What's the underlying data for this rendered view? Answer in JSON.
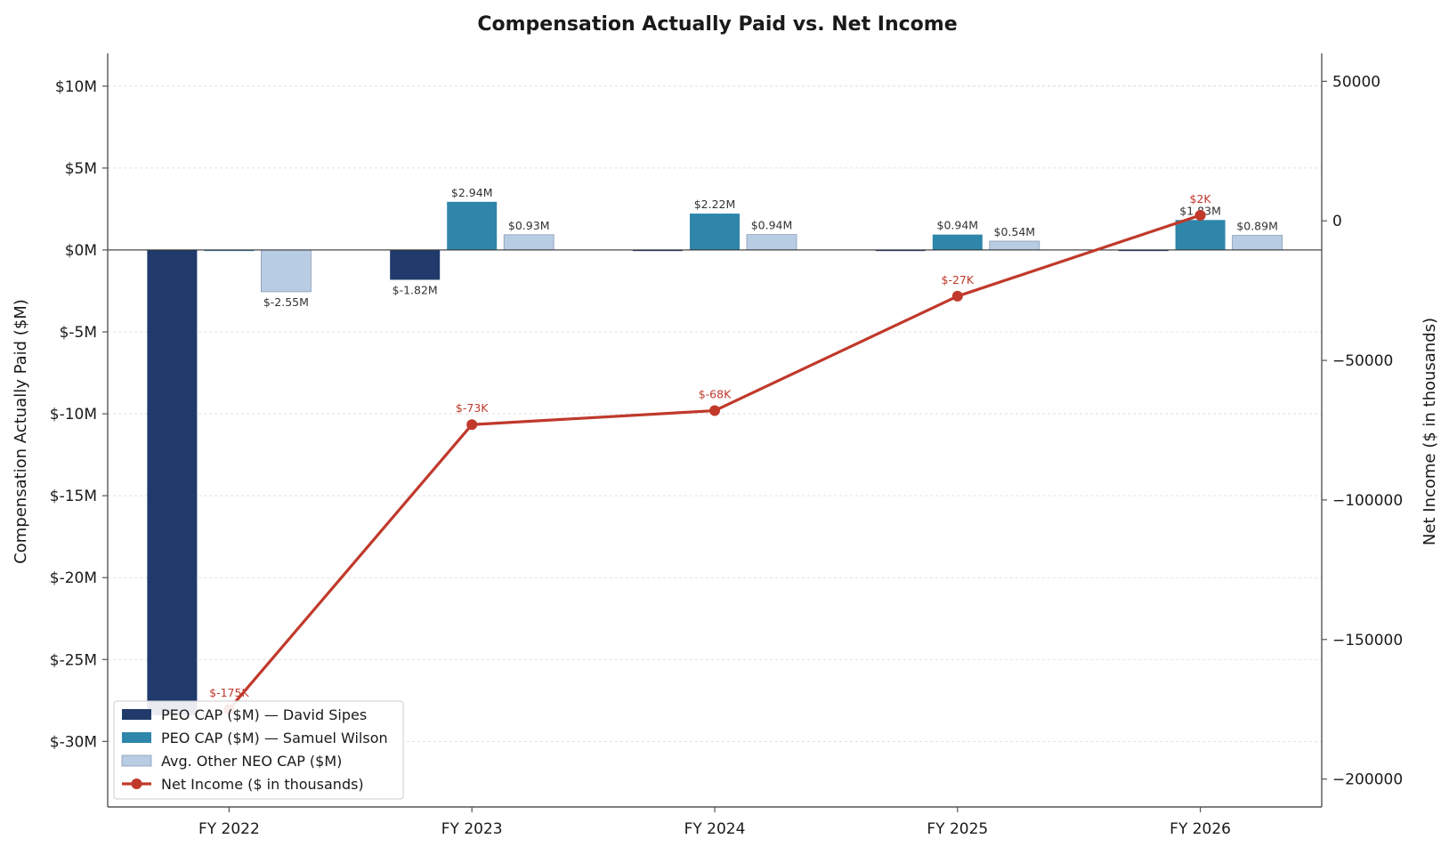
{
  "chart_data": {
    "type": "bar",
    "title": "Compensation Actually Paid vs. Net Income",
    "categories": [
      "FY 2022",
      "FY 2023",
      "FY 2024",
      "FY 2025",
      "FY 2026"
    ],
    "ylabel": "Compensation Actually Paid ($M)",
    "y2label": "Net Income ($ in thousands)",
    "ylim": [
      -34,
      12
    ],
    "yticks": [
      10,
      5,
      0,
      -5,
      -10,
      -15,
      -20,
      -25,
      -30
    ],
    "ytick_labels": [
      "$10M",
      "$5M",
      "$0M",
      "$-5M",
      "$-10M",
      "$-15M",
      "$-20M",
      "$-25M",
      "$-30M"
    ],
    "y2lim": [
      -210000,
      60000
    ],
    "y2ticks": [
      50000,
      0,
      -50000,
      -100000,
      -150000,
      -200000
    ],
    "y2tick_labels": [
      "50000",
      "0",
      "−50000",
      "−100000",
      "−150000",
      "−200000"
    ],
    "grid": true,
    "legend_position": "bottom-left",
    "series": [
      {
        "name": "PEO CAP ($M) — David Sipes",
        "kind": "bar",
        "color": "#1f3a6b",
        "values": [
          -28.4,
          -1.82,
          0,
          0,
          0
        ],
        "labels": [
          "",
          "$-1.82M",
          "",
          "",
          ""
        ]
      },
      {
        "name": "PEO CAP ($M) — Samuel Wilson",
        "kind": "bar",
        "color": "#2e86ab",
        "values": [
          0,
          2.94,
          2.22,
          0.94,
          1.83
        ],
        "labels": [
          "",
          "$2.94M",
          "$2.22M",
          "$0.94M",
          "$1.83M"
        ]
      },
      {
        "name": "Avg. Other NEO CAP ($M)",
        "kind": "bar",
        "color": "#b8cce4",
        "values": [
          -2.55,
          0.93,
          0.94,
          0.54,
          0.89
        ],
        "labels": [
          "$-2.55M",
          "$0.93M",
          "$0.94M",
          "$0.54M",
          "$0.89M"
        ]
      },
      {
        "name": "Net Income ($ in thousands)",
        "kind": "line",
        "axis": "right",
        "color": "#c0392b",
        "values": [
          -175000,
          -73000,
          -68000,
          -27000,
          2000
        ],
        "labels": [
          "$-175K",
          "$-73K",
          "$-68K",
          "$-27K",
          "$2K"
        ]
      }
    ]
  }
}
